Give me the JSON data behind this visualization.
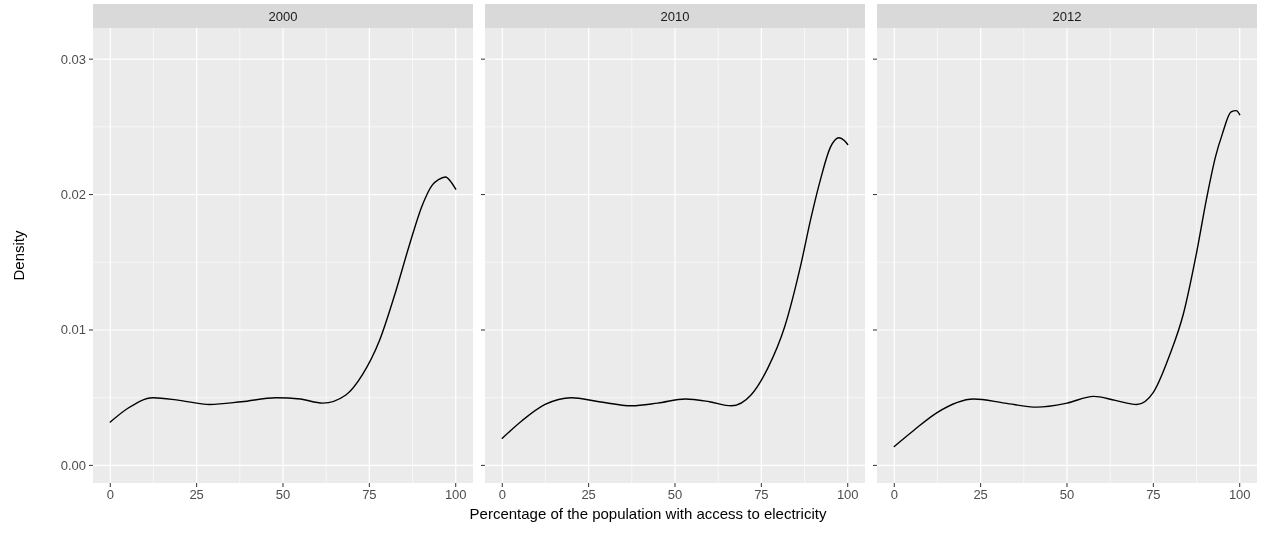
{
  "chart_data": [
    {
      "type": "line",
      "title": "2000",
      "ylabel": "Density",
      "xlim": [
        -5,
        105
      ],
      "ylim": [
        -0.0013,
        0.0323
      ],
      "xticks": [
        0,
        25,
        50,
        75,
        100
      ],
      "yticks": [
        {
          "value": 0,
          "label": "0.00"
        },
        {
          "value": 0.01,
          "label": "0.01"
        },
        {
          "value": 0.02,
          "label": "0.02"
        },
        {
          "value": 0.03,
          "label": "0.03"
        }
      ],
      "grid": true,
      "series": [
        {
          "color": "#000000",
          "x": [
            0,
            5,
            12.4,
            20,
            28.8,
            38,
            48,
            55,
            61.5,
            68.2,
            73,
            77.9,
            82.7,
            86.5,
            90.3,
            93.2,
            95,
            97,
            99,
            100
          ],
          "values": [
            0.0032,
            0.0042,
            0.005,
            0.0048,
            0.0045,
            0.0047,
            0.005,
            0.0049,
            0.0046,
            0.0052,
            0.0067,
            0.0092,
            0.0129,
            0.0162,
            0.0192,
            0.0207,
            0.0211,
            0.0213,
            0.0208,
            0.0204
          ]
        }
      ]
    },
    {
      "type": "line",
      "title": "2010",
      "xlabel": "Percentage of the population with access to electricity",
      "xlim": [
        -5,
        105
      ],
      "ylim": [
        -0.0013,
        0.0323
      ],
      "xticks": [
        0,
        25,
        50,
        75,
        100
      ],
      "yticks": [
        {
          "value": 0,
          "label": null
        },
        {
          "value": 0.01,
          "label": null
        },
        {
          "value": 0.02,
          "label": null
        },
        {
          "value": 0.03,
          "label": null
        }
      ],
      "grid": true,
      "tick_labels": "x",
      "series": [
        {
          "color": "#000000",
          "x": [
            0,
            5.7,
            12.4,
            20,
            28,
            37.5,
            45,
            53,
            60,
            66.3,
            72,
            76.9,
            81.7,
            86.5,
            89.3,
            92.2,
            95,
            97.5,
            99,
            100
          ],
          "values": [
            0.002,
            0.0033,
            0.0045,
            0.005,
            0.0047,
            0.0044,
            0.0046,
            0.0049,
            0.0047,
            0.0044,
            0.0052,
            0.0072,
            0.0102,
            0.0149,
            0.0182,
            0.0212,
            0.0235,
            0.0242,
            0.024,
            0.0237
          ]
        }
      ]
    },
    {
      "type": "line",
      "title": "2012",
      "xlim": [
        -5,
        105
      ],
      "ylim": [
        -0.0013,
        0.0323
      ],
      "xticks": [
        0,
        25,
        50,
        75,
        100
      ],
      "yticks": [
        {
          "value": 0,
          "label": null
        },
        {
          "value": 0.01,
          "label": null
        },
        {
          "value": 0.02,
          "label": null
        },
        {
          "value": 0.03,
          "label": null
        }
      ],
      "grid": true,
      "tick_labels": "x",
      "series": [
        {
          "color": "#000000",
          "x": [
            0,
            5.7,
            12.4,
            23,
            32,
            41.3,
            50,
            57.7,
            64,
            70.2,
            75,
            79.8,
            83.7,
            87.5,
            90.4,
            93,
            95,
            97.5,
            99,
            100
          ],
          "values": [
            0.0014,
            0.0026,
            0.0039,
            0.0049,
            0.0046,
            0.0043,
            0.0046,
            0.0051,
            0.0048,
            0.0045,
            0.0054,
            0.0082,
            0.0112,
            0.0157,
            0.0197,
            0.0228,
            0.0245,
            0.0261,
            0.0262,
            0.0259
          ]
        }
      ]
    }
  ]
}
